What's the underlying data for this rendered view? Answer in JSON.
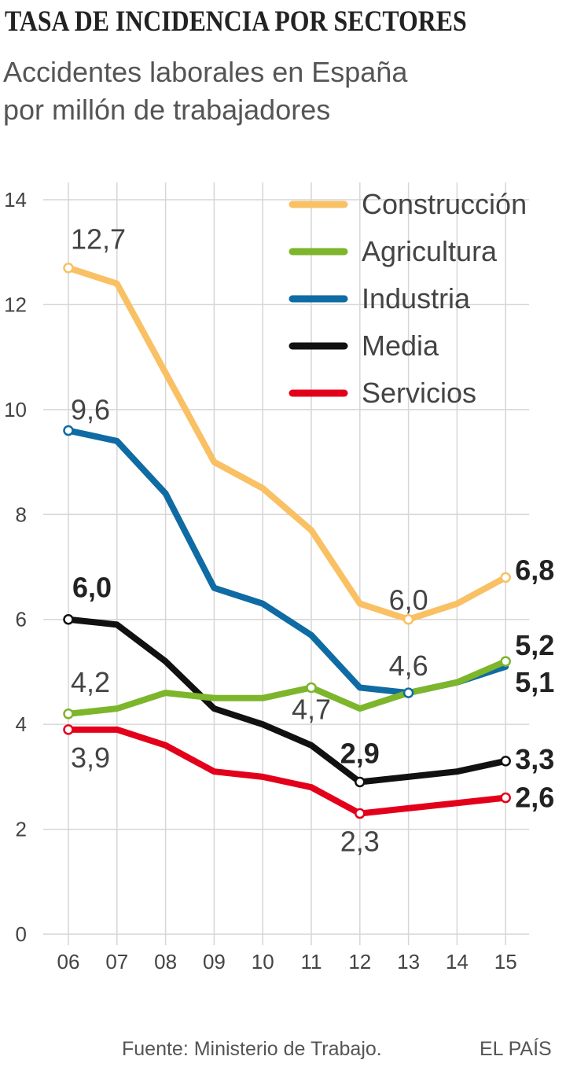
{
  "header": {
    "title": "TASA DE INCIDENCIA POR SECTORES",
    "subtitle_line1": "Accidentes laborales en España",
    "subtitle_line2": "por millón de trabajadores"
  },
  "footer": {
    "source": "Fuente: Ministerio de Trabajo.",
    "brand": "EL PAÍS"
  },
  "chart_data": {
    "type": "line",
    "title": "TASA DE INCIDENCIA POR SECTORES",
    "subtitle": "Accidentes laborales en España por millón de trabajadores",
    "xlabel": "",
    "ylabel": "",
    "categories": [
      "06",
      "07",
      "08",
      "09",
      "10",
      "11",
      "12",
      "13",
      "14",
      "15"
    ],
    "ylim": [
      0,
      14
    ],
    "yticks": [
      "0",
      "2",
      "4",
      "6",
      "8",
      "10",
      "12",
      "14"
    ],
    "grid": true,
    "legend_position": "top-right",
    "series": [
      {
        "name": "Construcción",
        "color": "#f9c064",
        "values": [
          12.7,
          12.4,
          10.7,
          9.0,
          8.5,
          7.7,
          6.3,
          6.0,
          6.3,
          6.8
        ]
      },
      {
        "name": "Agricultura",
        "color": "#7db52b",
        "values": [
          4.2,
          4.3,
          4.6,
          4.5,
          4.5,
          4.7,
          4.3,
          4.6,
          4.8,
          5.2
        ]
      },
      {
        "name": "Industria",
        "color": "#0f6ba3",
        "values": [
          9.6,
          9.4,
          8.4,
          6.6,
          6.3,
          5.7,
          4.7,
          4.6,
          4.8,
          5.1
        ]
      },
      {
        "name": "Media",
        "color": "#111111",
        "values": [
          6.0,
          5.9,
          5.2,
          4.3,
          4.0,
          3.6,
          2.9,
          3.0,
          3.1,
          3.3
        ]
      },
      {
        "name": "Servicios",
        "color": "#e3001b",
        "values": [
          3.9,
          3.9,
          3.6,
          3.1,
          3.0,
          2.8,
          2.3,
          2.4,
          2.5,
          2.6
        ]
      }
    ],
    "annotations": [
      {
        "text": "12,7",
        "series": "Construcción",
        "index": 0,
        "bold": false,
        "marker": true
      },
      {
        "text": "6,0",
        "series": "Construcción",
        "index": 7,
        "bold": false,
        "marker": true
      },
      {
        "text": "6,8",
        "series": "Construcción",
        "index": 9,
        "bold": true,
        "marker": true
      },
      {
        "text": "9,6",
        "series": "Industria",
        "index": 0,
        "bold": false,
        "marker": true
      },
      {
        "text": "4,6",
        "series": "Industria",
        "index": 7,
        "bold": false,
        "marker": true
      },
      {
        "text": "5,1",
        "series": "Industria",
        "index": 9,
        "bold": true,
        "marker": false
      },
      {
        "text": "4,2",
        "series": "Agricultura",
        "index": 0,
        "bold": false,
        "marker": true
      },
      {
        "text": "4,7",
        "series": "Agricultura",
        "index": 5,
        "bold": false,
        "marker": true
      },
      {
        "text": "5,2",
        "series": "Agricultura",
        "index": 9,
        "bold": true,
        "marker": true
      },
      {
        "text": "6,0",
        "series": "Media",
        "index": 0,
        "bold": true,
        "marker": true
      },
      {
        "text": "2,9",
        "series": "Media",
        "index": 6,
        "bold": true,
        "marker": true
      },
      {
        "text": "3,3",
        "series": "Media",
        "index": 9,
        "bold": true,
        "marker": true
      },
      {
        "text": "3,9",
        "series": "Servicios",
        "index": 0,
        "bold": false,
        "marker": true
      },
      {
        "text": "2,3",
        "series": "Servicios",
        "index": 6,
        "bold": false,
        "marker": true
      },
      {
        "text": "2,6",
        "series": "Servicios",
        "index": 9,
        "bold": true,
        "marker": true
      }
    ]
  }
}
